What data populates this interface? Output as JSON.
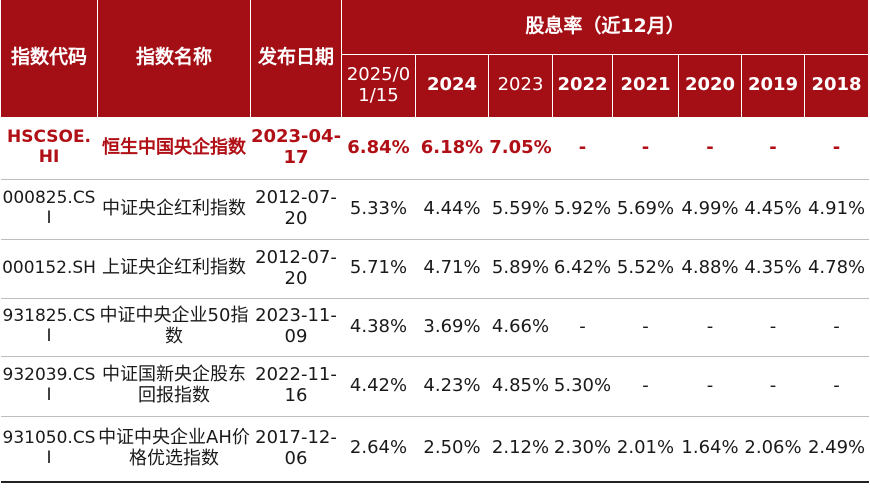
{
  "headers": {
    "code": "指数代码",
    "name": "指数名称",
    "date": "发布日期",
    "group": "股息率（近12月）",
    "years": [
      "2025/01/15",
      "2024",
      "2023",
      "2022",
      "2021",
      "2020",
      "2019",
      "2018"
    ]
  },
  "rows": [
    {
      "code": "HSCSOE.HI",
      "name": "恒生中国央企指数",
      "date": "2023-04-17",
      "values": [
        "6.84%",
        "6.18%",
        "7.05%",
        "-",
        "-",
        "-",
        "-",
        "-"
      ]
    },
    {
      "code": "000825.CSI",
      "name": "中证央企红利指数",
      "date": "2012-07-20",
      "values": [
        "5.33%",
        "4.44%",
        "5.59%",
        "5.92%",
        "5.69%",
        "4.99%",
        "4.45%",
        "4.91%"
      ]
    },
    {
      "code": "000152.SH",
      "name": "上证央企红利指数",
      "date": "2012-07-20",
      "values": [
        "5.71%",
        "4.71%",
        "5.89%",
        "6.42%",
        "5.52%",
        "4.88%",
        "4.35%",
        "4.78%"
      ]
    },
    {
      "code": "931825.CSI",
      "name": "中证中央企业50指数",
      "date": "2023-11-09",
      "values": [
        "4.38%",
        "3.69%",
        "4.66%",
        "-",
        "-",
        "-",
        "-",
        "-"
      ]
    },
    {
      "code": "932039.CSI",
      "name": "中证国新央企股东回报指数",
      "date": "2022-11-16",
      "values": [
        "4.42%",
        "4.23%",
        "4.85%",
        "5.30%",
        "-",
        "-",
        "-",
        "-"
      ]
    },
    {
      "code": "931050.CSI",
      "name": "中证中央企业AH价格优选指数",
      "date": "2017-12-06",
      "values": [
        "2.64%",
        "2.50%",
        "2.12%",
        "2.30%",
        "2.01%",
        "1.64%",
        "2.06%",
        "2.49%"
      ]
    }
  ],
  "colors": {
    "header_bg": "#a40f16",
    "highlight_text": "#b00f16"
  }
}
